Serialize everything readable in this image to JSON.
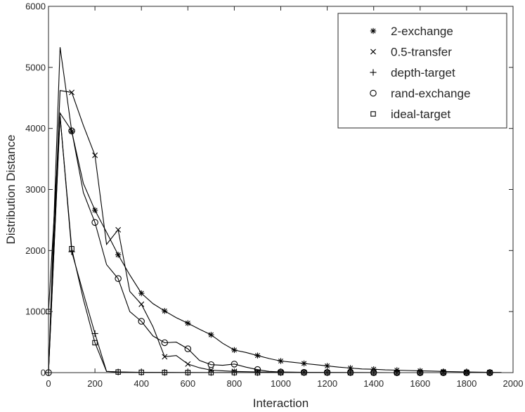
{
  "chart_data": {
    "type": "line",
    "title": "",
    "xlabel": "Interaction",
    "ylabel": "Distribution Distance",
    "xlim": [
      0,
      2000
    ],
    "ylim": [
      0,
      6000
    ],
    "x_ticks": [
      0,
      200,
      400,
      600,
      800,
      1000,
      1200,
      1400,
      1600,
      1800,
      2000
    ],
    "y_ticks": [
      0,
      1000,
      2000,
      3000,
      4000,
      5000,
      6000
    ],
    "grid": false,
    "legend_position": "top-right",
    "series": [
      {
        "name": "2-exchange",
        "marker": "asterisk",
        "x": [
          0,
          50,
          100,
          150,
          200,
          250,
          300,
          350,
          400,
          450,
          500,
          550,
          600,
          650,
          700,
          750,
          800,
          850,
          900,
          950,
          1000,
          1050,
          1100,
          1150,
          1200,
          1250,
          1300,
          1350,
          1400,
          1450,
          1500,
          1550,
          1600,
          1650,
          1700,
          1750,
          1800,
          1850,
          1900,
          1950
        ],
        "y": [
          0,
          5330,
          3950,
          3100,
          2660,
          2300,
          1930,
          1600,
          1300,
          1130,
          1010,
          900,
          810,
          710,
          620,
          480,
          370,
          330,
          280,
          230,
          190,
          170,
          150,
          130,
          110,
          90,
          75,
          60,
          55,
          45,
          40,
          35,
          30,
          25,
          20,
          15,
          12,
          8,
          5,
          3
        ],
        "marked_x": [
          100,
          200,
          300,
          400,
          500,
          600,
          700,
          800,
          900,
          1000,
          1100,
          1200,
          1300,
          1400,
          1500,
          1600,
          1700,
          1800,
          1900
        ]
      },
      {
        "name": "0.5-transfer",
        "marker": "x",
        "x": [
          0,
          50,
          100,
          150,
          200,
          250,
          300,
          350,
          400,
          450,
          500,
          550,
          600,
          650,
          700,
          750,
          800,
          850,
          900,
          950,
          1000,
          1100,
          1200,
          1300,
          1400,
          1500,
          1600,
          1700,
          1800,
          1900
        ],
        "y": [
          0,
          4620,
          4590,
          4050,
          3560,
          2100,
          2340,
          1330,
          1120,
          750,
          260,
          280,
          140,
          80,
          40,
          30,
          20,
          15,
          10,
          8,
          5,
          3,
          2,
          1,
          1,
          0,
          0,
          0,
          0,
          0
        ],
        "marked_x": [
          100,
          200,
          300,
          400,
          500,
          600,
          700,
          800,
          900,
          1000,
          1100,
          1200,
          1300,
          1400,
          1500,
          1600,
          1700,
          1800,
          1900
        ]
      },
      {
        "name": "depth-target",
        "marker": "plus",
        "x": [
          0,
          50,
          100,
          150,
          200,
          250,
          300,
          350,
          400,
          500,
          600,
          700,
          800,
          900,
          1000,
          1100,
          1200,
          1300,
          1400,
          1500,
          1600,
          1700,
          1800,
          1900
        ],
        "y": [
          0,
          4200,
          1980,
          1300,
          640,
          20,
          10,
          5,
          5,
          3,
          2,
          1,
          1,
          0,
          0,
          0,
          0,
          0,
          0,
          0,
          0,
          0,
          0,
          0
        ],
        "marked_x": [
          0,
          100,
          200,
          300,
          400,
          500,
          600,
          700,
          800,
          900,
          1000,
          1100,
          1200,
          1300,
          1400,
          1500,
          1600,
          1700,
          1800,
          1900
        ]
      },
      {
        "name": "rand-exchange",
        "marker": "circle",
        "x": [
          0,
          50,
          100,
          150,
          200,
          250,
          300,
          350,
          400,
          450,
          500,
          550,
          600,
          650,
          700,
          750,
          800,
          850,
          900,
          950,
          1000,
          1100,
          1200,
          1300,
          1400,
          1500,
          1600,
          1700,
          1800,
          1900
        ],
        "y": [
          0,
          4250,
          3960,
          2950,
          2460,
          1770,
          1540,
          1000,
          840,
          600,
          490,
          500,
          390,
          200,
          130,
          120,
          140,
          90,
          50,
          20,
          10,
          5,
          3,
          2,
          1,
          0,
          0,
          0,
          0,
          0
        ],
        "marked_x": [
          0,
          100,
          200,
          300,
          400,
          500,
          600,
          700,
          800,
          900,
          1000,
          1100,
          1200,
          1300,
          1400,
          1500,
          1600,
          1700,
          1800,
          1900
        ]
      },
      {
        "name": "ideal-target",
        "marker": "square",
        "x": [
          0,
          50,
          100,
          150,
          200,
          250,
          300,
          400,
          500,
          600,
          700,
          800,
          900,
          1000,
          1100,
          1200,
          1300,
          1400,
          1500,
          1600,
          1700,
          1800,
          1900
        ],
        "y": [
          1000,
          4200,
          2030,
          1200,
          490,
          20,
          10,
          5,
          3,
          2,
          1,
          1,
          0,
          0,
          0,
          0,
          0,
          0,
          0,
          0,
          0,
          0,
          0
        ],
        "marked_x": [
          0,
          100,
          200,
          300,
          400,
          500,
          600,
          700,
          800,
          900,
          1000,
          1100,
          1200,
          1300,
          1400,
          1500,
          1600,
          1700,
          1800,
          1900
        ]
      }
    ]
  }
}
